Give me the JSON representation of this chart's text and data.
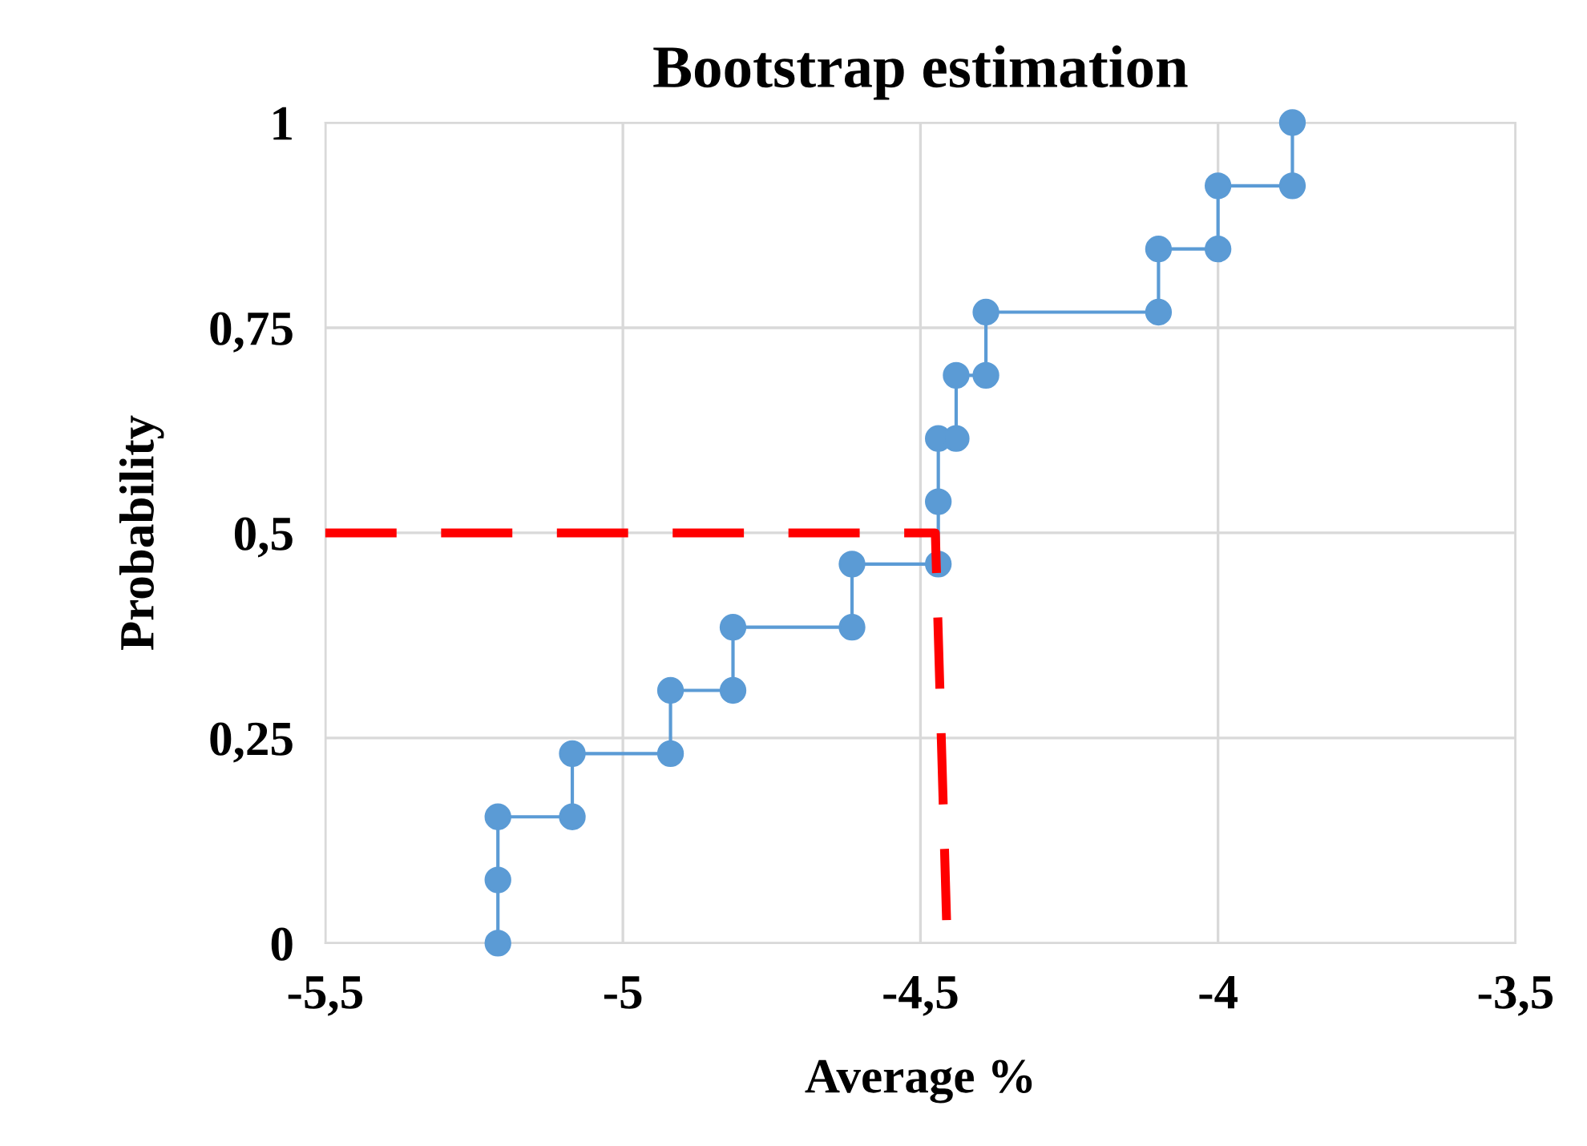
{
  "chart_data": {
    "type": "line",
    "title": "Bootstrap estimation",
    "xlabel": "Average %",
    "ylabel": "Probability",
    "series": [
      {
        "color": "#5b9bd5",
        "marker": "circle",
        "line_style": "solid",
        "x": [
          -5.21,
          -5.21,
          -5.21,
          -5.085,
          -5.085,
          -4.92,
          -4.92,
          -4.815,
          -4.815,
          -4.615,
          -4.615,
          -4.47,
          -4.47,
          -4.47,
          -4.44,
          -4.44,
          -4.39,
          -4.39,
          -4.1,
          -4.1,
          -4.0,
          -4.0,
          -3.875,
          -3.875
        ],
        "values": [
          0,
          0.077,
          0.154,
          0.154,
          0.231,
          0.231,
          0.308,
          0.308,
          0.385,
          0.385,
          0.462,
          0.462,
          0.538,
          0.615,
          0.615,
          0.692,
          0.692,
          0.769,
          0.769,
          0.846,
          0.846,
          0.923,
          0.923,
          1
        ]
      },
      {
        "color": "#ff0000",
        "marker": "none",
        "line_style": "dashed",
        "x": [
          -5.5,
          -4.475,
          -4.455
        ],
        "values": [
          0.5,
          0.5,
          0
        ]
      }
    ],
    "xlim": [
      -5.5,
      -3.5
    ],
    "xticks": [
      {
        "value": -5.5,
        "label": "-5,5"
      },
      -5,
      {
        "value": -4.5,
        "label": "-4,5"
      },
      -4,
      {
        "value": -3.5,
        "label": "-3,5"
      }
    ],
    "ylim": [
      0,
      1
    ],
    "yticks": [
      0,
      {
        "value": 0.25,
        "label": "0,25"
      },
      {
        "value": 0.5,
        "label": "0,5"
      },
      {
        "value": 0.75,
        "label": "0,75"
      },
      1
    ],
    "grid": true
  }
}
